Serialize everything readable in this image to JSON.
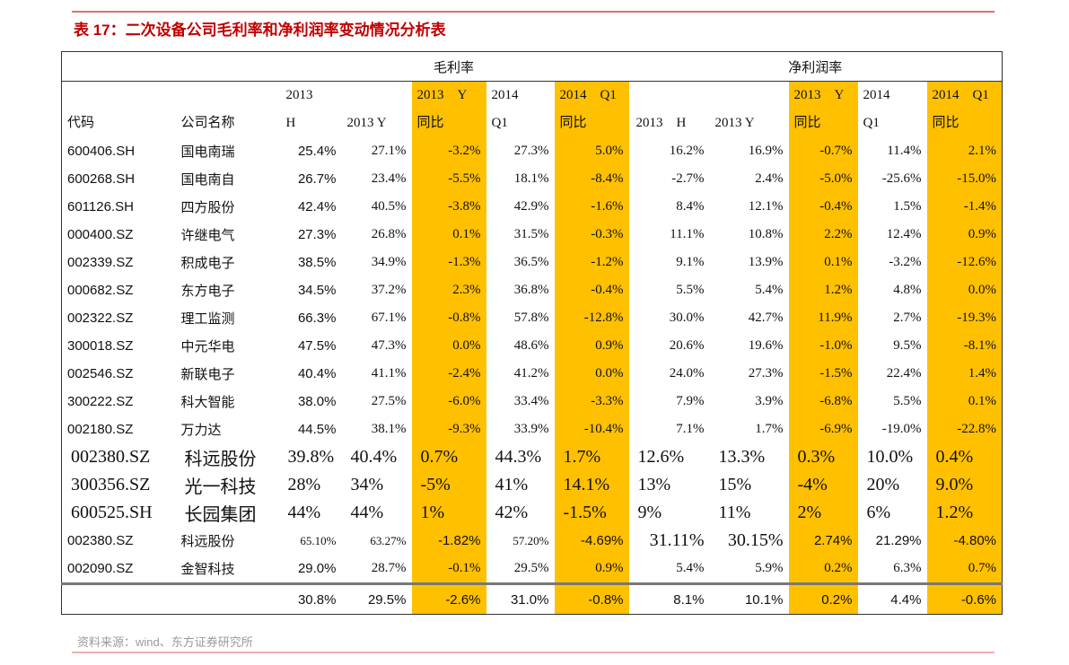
{
  "title": "表 17：二次设备公司毛利率和净利润率变动情况分析表",
  "groups": {
    "gross": "毛利率",
    "net": "净利润率"
  },
  "headers": {
    "code": "代码",
    "name": "公司名称",
    "gross": [
      {
        "l1": "2013",
        "l2": "H"
      },
      {
        "l1": "",
        "l2": "2013 Y"
      },
      {
        "l1": "2013　Y",
        "l2": "同比"
      },
      {
        "l1": "2014",
        "l2": "Q1"
      },
      {
        "l1": "2014　Q1",
        "l2": "同比"
      }
    ],
    "net": [
      {
        "l1": "",
        "l2": "2013　H"
      },
      {
        "l1": "",
        "l2": "2013 Y"
      },
      {
        "l1": "2013　Y",
        "l2": "同比"
      },
      {
        "l1": "2014",
        "l2": "Q1"
      },
      {
        "l1": "2014　Q1",
        "l2": "同比"
      }
    ]
  },
  "rows": [
    [
      "600406.SH",
      "国电南瑞",
      "25.4%",
      "27.1%",
      "-3.2%",
      "27.3%",
      "5.0%",
      "16.2%",
      "16.9%",
      "-0.7%",
      "11.4%",
      "2.1%"
    ],
    [
      "600268.SH",
      "国电南自",
      "26.7%",
      "23.4%",
      "-5.5%",
      "18.1%",
      "-8.4%",
      "-2.7%",
      "2.4%",
      "-5.0%",
      "-25.6%",
      "-15.0%"
    ],
    [
      "601126.SH",
      "四方股份",
      "42.4%",
      "40.5%",
      "-3.8%",
      "42.9%",
      "-1.6%",
      "8.4%",
      "12.1%",
      "-0.4%",
      "1.5%",
      "-1.4%"
    ],
    [
      "000400.SZ",
      "许继电气",
      "27.3%",
      "26.8%",
      "0.1%",
      "31.5%",
      "-0.3%",
      "11.1%",
      "10.8%",
      "2.2%",
      "12.4%",
      "0.9%"
    ],
    [
      "002339.SZ",
      "积成电子",
      "38.5%",
      "34.9%",
      "-1.3%",
      "36.5%",
      "-1.2%",
      "9.1%",
      "13.9%",
      "0.1%",
      "-3.2%",
      "-12.6%"
    ],
    [
      "000682.SZ",
      "东方电子",
      "34.5%",
      "37.2%",
      "2.3%",
      "36.8%",
      "-0.4%",
      "5.5%",
      "5.4%",
      "1.2%",
      "4.8%",
      "0.0%"
    ],
    [
      "002322.SZ",
      "理工监测",
      "66.3%",
      "67.1%",
      "-0.8%",
      "57.8%",
      "-12.8%",
      "30.0%",
      "42.7%",
      "11.9%",
      "2.7%",
      "-19.3%"
    ],
    [
      "300018.SZ",
      "中元华电",
      "47.5%",
      "47.3%",
      "0.0%",
      "48.6%",
      "0.9%",
      "20.6%",
      "19.6%",
      "-1.0%",
      "9.5%",
      "-8.1%"
    ],
    [
      "002546.SZ",
      "新联电子",
      "40.4%",
      "41.1%",
      "-2.4%",
      "41.2%",
      "0.0%",
      "24.0%",
      "27.3%",
      "-1.5%",
      "22.4%",
      "1.4%"
    ],
    [
      "300222.SZ",
      "科大智能",
      "38.0%",
      "27.5%",
      "-6.0%",
      "33.4%",
      "-3.3%",
      "7.9%",
      "3.9%",
      "-6.8%",
      "5.5%",
      "0.1%"
    ],
    [
      "002180.SZ",
      "万力达",
      "44.5%",
      "38.1%",
      "-9.3%",
      "33.9%",
      "-10.4%",
      "7.1%",
      "1.7%",
      "-6.9%",
      "-19.0%",
      "-22.8%"
    ],
    [
      "002380.SZ",
      "科远股份",
      "39.8%",
      "40.4%",
      "0.7%",
      "44.3%",
      "1.7%",
      "12.6%",
      "13.3%",
      "0.3%",
      "10.0%",
      "0.4%"
    ],
    [
      "300356.SZ",
      "光一科技",
      "28%",
      "34%",
      "-5%",
      "41%",
      "14.1%",
      "13%",
      "15%",
      "-4%",
      "20%",
      "9.0%"
    ],
    [
      "600525.SH",
      "长园集团",
      "44%",
      "44%",
      "1%",
      "42%",
      "-1.5%",
      "9%",
      "11%",
      "2%",
      "6%",
      "1.2%"
    ],
    [
      "002380.SZ",
      "科远股份",
      "65.10%",
      "63.27%",
      "-1.82%",
      "57.20%",
      "-4.69%",
      "31.11%",
      "30.15%",
      "2.74%",
      "21.29%",
      "-4.80%"
    ],
    [
      "002090.SZ",
      "金智科技",
      "29.0%",
      "28.7%",
      "-0.1%",
      "29.5%",
      "0.9%",
      "5.4%",
      "5.9%",
      "0.2%",
      "6.3%",
      "0.7%"
    ]
  ],
  "total": [
    "",
    "",
    "30.8%",
    "29.5%",
    "-2.6%",
    "31.0%",
    "-0.8%",
    "8.1%",
    "10.1%",
    "0.2%",
    "4.4%",
    "-0.6%"
  ],
  "source": "资料来源：wind、东方证券研究所",
  "colors": {
    "highlight": "#ffc000",
    "title": "#c00000"
  }
}
